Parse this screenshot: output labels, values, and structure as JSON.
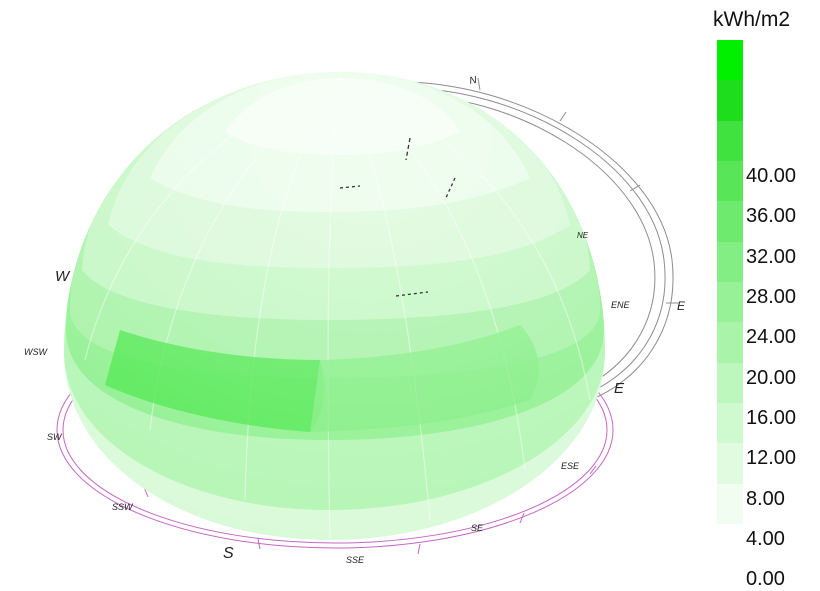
{
  "legend": {
    "unit": "kWh/m2",
    "ticks": [
      "0.00",
      "4.00",
      "8.00",
      "12.00",
      "16.00",
      "20.00",
      "24.00",
      "28.00",
      "32.00",
      "36.00",
      "40.00"
    ],
    "colors": [
      "#f2fdf2",
      "#e1fbe1",
      "#cff9cf",
      "#bdf7bd",
      "#aaf4aa",
      "#97f197",
      "#83ee83",
      "#6eea6e",
      "#58e658",
      "#40e240",
      "#1ddd1d"
    ],
    "max_color": "#00f000"
  },
  "compass": {
    "ring_color": "#7a7a7a",
    "base_color": "#c467c4",
    "labels": [
      "N",
      "NE",
      "E",
      "ENE",
      "E",
      "ESE",
      "SE",
      "SSE",
      "S",
      "SSW",
      "SW",
      "WSW",
      "W"
    ]
  },
  "sky_dome": {
    "ring_colors": [
      "#f7fff7",
      "#e9fce9",
      "#d9fad9",
      "#c1f7c1",
      "#a3f2a3",
      "#70ea70",
      "#a8f3a8",
      "#d8fad8"
    ]
  }
}
